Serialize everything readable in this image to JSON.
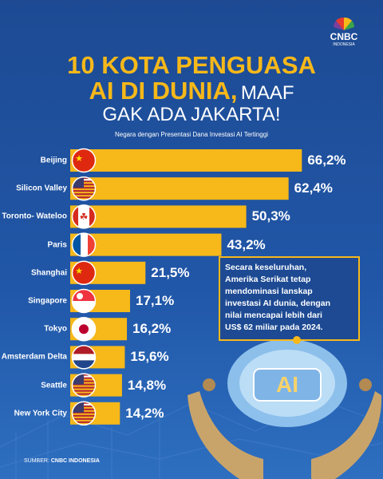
{
  "chart_data": {
    "type": "barh",
    "brand": {
      "name": "CNBC",
      "sub": "INDONESIA"
    },
    "title": {
      "line1": "10 KOTA PENGUASA",
      "line2_highlight": "AI DI DUNIA,",
      "line2_rest": "MAAF",
      "line3": "GAK ADA JAKARTA!"
    },
    "subtitle": "Negara dengan Presentasi Dana Investasi AI Tertinggi",
    "categories": [
      "Beijing",
      "Silicon\nValley",
      "Toronto-\nWateloo",
      "Paris",
      "Shanghai",
      "Singapore",
      "Tokyo",
      "Amsterdam\nDelta",
      "Seattle",
      "New\nYork City"
    ],
    "values": [
      66.2,
      62.4,
      50.3,
      43.2,
      21.5,
      17.1,
      16.2,
      15.6,
      14.8,
      14.2
    ],
    "value_labels": [
      "66,2%",
      "62,4%",
      "50,3%",
      "43,2%",
      "21,5%",
      "17,1%",
      "16,2%",
      "15,6%",
      "14,8%",
      "14,2%"
    ],
    "color": "#f7b819",
    "xlim": [
      0,
      70
    ],
    "annotation": "Secara keseluruhan,\nAmerika Serikat tetap\nmendominasi lanskap\ninvestasi AI dunia, dengan\nnilai mencapai lebih dari\nUS$ 62 miliar pada 2024.",
    "image_label": "AI",
    "source": {
      "label": "SUMBER:",
      "text": "CNBC INDONESIA"
    }
  }
}
